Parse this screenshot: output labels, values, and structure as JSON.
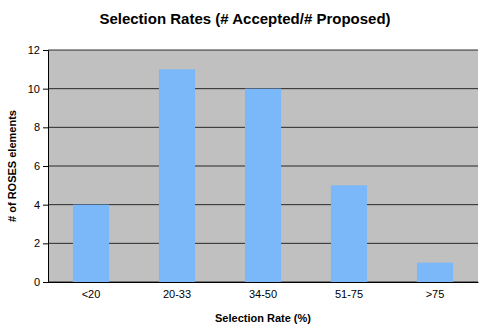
{
  "chart_data": {
    "type": "bar",
    "title": "Selection Rates (# Accepted/# Proposed)",
    "x_label": "Selection Rate (%)",
    "y_label": "# of ROSES elements",
    "categories": [
      "<20",
      "20-33",
      "34-50",
      "51-75",
      ">75"
    ],
    "values": [
      4,
      11,
      10,
      5,
      1
    ],
    "color": "#7ab8fa",
    "ylim": [
      0,
      12
    ],
    "yticks": [
      0,
      2,
      4,
      6,
      8,
      10,
      12
    ],
    "grid": true
  }
}
